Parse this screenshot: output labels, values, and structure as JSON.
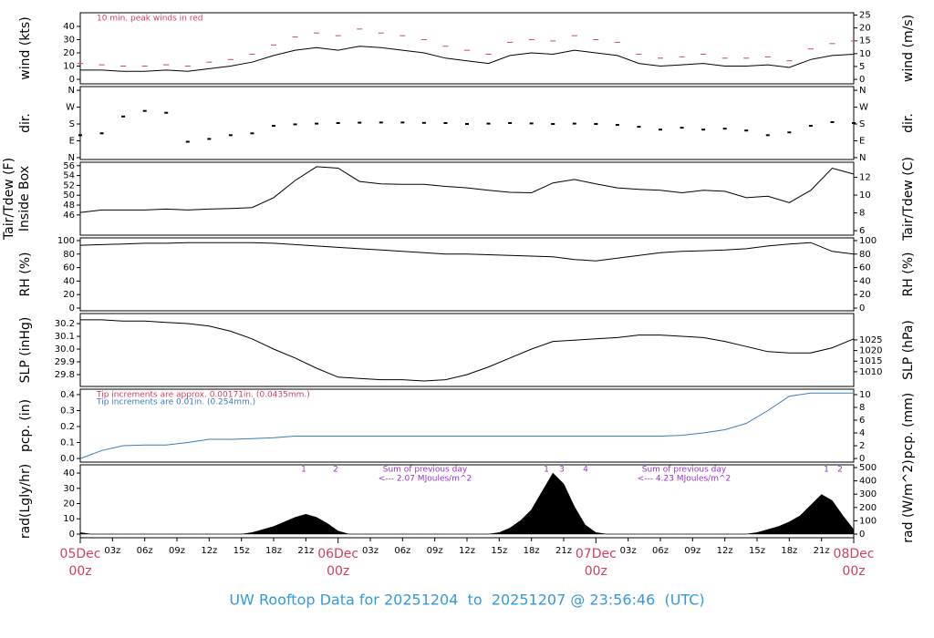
{
  "title": "UW Rooftop Data for 20251204  to  20251207 @ 23:56:46  (UTC)",
  "chart_data": [
    {
      "type": "line",
      "xlim": [
        0,
        72
      ],
      "x": [
        0,
        2,
        4,
        6,
        8,
        10,
        12,
        14,
        16,
        18,
        20,
        22,
        24,
        26,
        28,
        30,
        32,
        34,
        36,
        38,
        40,
        42,
        44,
        46,
        48,
        50,
        52,
        54,
        56,
        58,
        60,
        62,
        64,
        66,
        68,
        70,
        72
      ],
      "ylim": [
        -3.4,
        50.3
      ],
      "yticks": [
        0,
        10,
        20,
        30,
        40
      ],
      "y2lim": [
        -1.75,
        25.9
      ],
      "y2ticks": [
        0,
        5,
        10,
        15,
        20,
        25
      ],
      "ylabel": "wind (kts)",
      "y2label": "wind (m/s)",
      "annotations": [
        {
          "text": "10 min. peak winds in red",
          "color": "#d04060"
        }
      ],
      "series": [
        {
          "color": "#000000",
          "values": [
            7,
            7,
            6,
            6,
            7,
            6,
            8,
            10,
            13,
            18,
            22,
            24,
            22,
            25,
            24,
            22,
            20,
            16,
            14,
            12,
            18,
            20,
            19,
            22,
            20,
            18,
            12,
            10,
            11,
            12,
            10,
            10,
            11,
            9,
            15,
            18,
            19
          ]
        },
        {
          "color": "#d04060",
          "style": "dash",
          "values": [
            12,
            11,
            10,
            10,
            11,
            10,
            13,
            15,
            19,
            26,
            32,
            35,
            33,
            38,
            35,
            33,
            30,
            25,
            22,
            19,
            28,
            30,
            29,
            33,
            30,
            28,
            19,
            16,
            17,
            19,
            16,
            16,
            17,
            14,
            23,
            27,
            29
          ]
        }
      ]
    },
    {
      "type": "scatter",
      "xlim": [
        0,
        72
      ],
      "x": [
        0,
        2,
        4,
        6,
        8,
        10,
        12,
        14,
        16,
        18,
        20,
        22,
        24,
        26,
        28,
        30,
        32,
        34,
        36,
        38,
        40,
        42,
        44,
        46,
        48,
        50,
        52,
        54,
        56,
        58,
        60,
        62,
        64,
        66,
        68,
        70,
        72
      ],
      "ylim": [
        -10,
        380
      ],
      "yticks": [
        {
          "value": 0,
          "label": "N"
        },
        {
          "value": 90,
          "label": "E"
        },
        {
          "value": 180,
          "label": "S"
        },
        {
          "value": 270,
          "label": "W"
        },
        {
          "value": 360,
          "label": "N"
        }
      ],
      "y2lim": [
        -10,
        380
      ],
      "y2ticks": [
        {
          "value": 0,
          "label": "N"
        },
        {
          "value": 90,
          "label": "E"
        },
        {
          "value": 180,
          "label": "S"
        },
        {
          "value": 270,
          "label": "W"
        },
        {
          "value": 360,
          "label": "N"
        }
      ],
      "ylabel": "dir.",
      "y2label": "dir.",
      "color": "#000000",
      "values": [
        120,
        130,
        220,
        250,
        240,
        85,
        100,
        120,
        130,
        170,
        178,
        182,
        185,
        187,
        188,
        188,
        186,
        185,
        180,
        182,
        185,
        183,
        180,
        182,
        180,
        175,
        165,
        150,
        160,
        150,
        155,
        145,
        120,
        135,
        170,
        190,
        185
      ]
    },
    {
      "type": "line",
      "xlim": [
        0,
        72
      ],
      "x": [
        0,
        2,
        4,
        6,
        8,
        10,
        12,
        14,
        16,
        18,
        20,
        22,
        24,
        26,
        28,
        30,
        32,
        34,
        36,
        38,
        40,
        42,
        44,
        46,
        48,
        50,
        52,
        54,
        56,
        58,
        60,
        62,
        64,
        66,
        68,
        70,
        72
      ],
      "ylim": [
        41.9,
        56.7
      ],
      "yticks": [
        46,
        48,
        50,
        52,
        54,
        56
      ],
      "y2lim": [
        5.5,
        13.7
      ],
      "y2ticks": [
        6,
        8,
        10,
        12
      ],
      "ylabel": [
        "Tair/Tdew (F)",
        "Inside Box"
      ],
      "y2label": "Tair/Tdew (C)",
      "series": [
        {
          "color": "#000000",
          "values": [
            46.5,
            47,
            47,
            47,
            47.2,
            47,
            47.2,
            47.3,
            47.5,
            49.5,
            53,
            55.8,
            55.5,
            52.8,
            52.3,
            52.2,
            52.2,
            51.8,
            51.5,
            51,
            50.6,
            50.5,
            52.5,
            53.2,
            52.3,
            51.5,
            51.2,
            51,
            50.5,
            51,
            50.8,
            49.5,
            49.8,
            48.5,
            51,
            55.5,
            54.3
          ]
        }
      ]
    },
    {
      "type": "line",
      "xlim": [
        0,
        72
      ],
      "x": [
        0,
        2,
        4,
        6,
        8,
        10,
        12,
        14,
        16,
        18,
        20,
        22,
        24,
        26,
        28,
        30,
        32,
        34,
        36,
        38,
        40,
        42,
        44,
        46,
        48,
        50,
        52,
        54,
        56,
        58,
        60,
        62,
        64,
        66,
        68,
        70,
        72
      ],
      "ylim": [
        -4,
        104
      ],
      "yticks": [
        0,
        20,
        40,
        60,
        80,
        100
      ],
      "y2lim": [
        -4,
        104
      ],
      "y2ticks": [
        0,
        20,
        40,
        60,
        80,
        100
      ],
      "ylabel": "RH (%)",
      "y2label": "RH (%)",
      "series": [
        {
          "color": "#000000",
          "values": [
            93,
            94,
            95,
            96,
            96,
            97,
            97,
            97,
            97,
            96,
            94,
            92,
            90,
            88,
            86,
            84,
            82,
            80,
            80,
            79,
            78,
            77,
            76,
            72,
            70,
            74,
            78,
            82,
            84,
            85,
            86,
            88,
            92,
            95,
            97,
            84,
            80
          ]
        }
      ]
    },
    {
      "type": "line",
      "xlim": [
        0,
        72
      ],
      "x": [
        0,
        2,
        4,
        6,
        8,
        10,
        12,
        14,
        16,
        18,
        20,
        22,
        24,
        26,
        28,
        30,
        32,
        34,
        36,
        38,
        40,
        42,
        44,
        46,
        48,
        50,
        52,
        54,
        56,
        58,
        60,
        62,
        64,
        66,
        68,
        70,
        72
      ],
      "ylim": [
        29.707,
        30.279
      ],
      "yticks": [
        29.8,
        29.9,
        {
          "value": 30,
          "label": "30.0"
        },
        30.1,
        30.2
      ],
      "y2lim": [
        1003.1,
        1037.4
      ],
      "y2ticks": [
        1010,
        1015,
        1020,
        1025
      ],
      "ylabel": "SLP (inHg)",
      "y2label": "SLP (hPa)",
      "series": [
        {
          "color": "#000000",
          "values": [
            30.23,
            30.23,
            30.22,
            30.22,
            30.21,
            30.2,
            30.18,
            30.14,
            30.08,
            30.0,
            29.93,
            29.85,
            29.78,
            29.77,
            29.76,
            29.76,
            29.75,
            29.76,
            29.8,
            29.86,
            29.93,
            30.0,
            30.06,
            30.07,
            30.08,
            30.09,
            30.11,
            30.11,
            30.1,
            30.09,
            30.06,
            30.02,
            29.98,
            29.97,
            29.97,
            30.01,
            30.08
          ]
        }
      ]
    },
    {
      "type": "line",
      "xlim": [
        0,
        72
      ],
      "x": [
        0,
        2,
        4,
        6,
        8,
        10,
        12,
        14,
        16,
        18,
        20,
        22,
        24,
        26,
        28,
        30,
        32,
        34,
        36,
        38,
        40,
        42,
        44,
        46,
        48,
        50,
        52,
        54,
        56,
        58,
        60,
        62,
        64,
        66,
        68,
        70,
        72
      ],
      "ylim": [
        -0.0225,
        0.434
      ],
      "yticks": [
        {
          "value": 0,
          "label": "0.0"
        },
        0.1,
        0.2,
        0.3,
        0.4
      ],
      "y2lim": [
        -0.56,
        10.85
      ],
      "y2ticks": [
        0,
        2,
        4,
        6,
        8,
        10
      ],
      "ylabel": "pcp. (in)",
      "y2label": "pcp. (mm)",
      "annotations": [
        {
          "text": "Tip increments are approx. 0.00171in. (0.0435mm.)",
          "color": "#d04060"
        },
        {
          "text": "Tip increments are 0.01in. (0.254mm.)",
          "color": "#3a7ac0"
        }
      ],
      "series": [
        {
          "color": "#3a7ac0",
          "values": [
            0,
            0.05,
            0.08,
            0.085,
            0.085,
            0.1,
            0.12,
            0.12,
            0.125,
            0.13,
            0.14,
            0.14,
            0.14,
            0.14,
            0.14,
            0.14,
            0.14,
            0.14,
            0.14,
            0.14,
            0.14,
            0.14,
            0.14,
            0.14,
            0.14,
            0.14,
            0.14,
            0.14,
            0.145,
            0.16,
            0.18,
            0.22,
            0.3,
            0.39,
            0.41,
            0.41,
            0.41
          ]
        }
      ]
    },
    {
      "type": "area",
      "xlim": [
        0,
        72
      ],
      "x": [
        0,
        1,
        2,
        3,
        4,
        5,
        6,
        7,
        8,
        9,
        10,
        11,
        12,
        13,
        14,
        15,
        16,
        17,
        18,
        19,
        20,
        21,
        22,
        23,
        24,
        25,
        26,
        27,
        28,
        29,
        30,
        31,
        32,
        33,
        34,
        35,
        36,
        37,
        38,
        39,
        40,
        41,
        42,
        43,
        44,
        45,
        46,
        47,
        48,
        49,
        50,
        51,
        52,
        53,
        54,
        55,
        56,
        57,
        58,
        59,
        60,
        61,
        62,
        63,
        64,
        65,
        66,
        67,
        68,
        69,
        70,
        71,
        72
      ],
      "ylim": [
        -2.4,
        45.4
      ],
      "yticks": [
        0,
        10,
        20,
        30,
        40
      ],
      "y2lim": [
        -27.4,
        520.5
      ],
      "y2ticks": [
        0,
        100,
        200,
        300,
        400,
        500
      ],
      "ylabel": "rad(Lgly/hr)",
      "y2label": "rad (W/m^2)",
      "color": "#000000",
      "values": [
        1,
        0,
        0,
        0,
        0,
        0,
        0,
        0,
        0,
        0,
        0,
        0,
        0,
        0,
        0,
        0,
        1,
        3,
        5,
        8,
        11,
        13,
        11,
        7,
        2,
        0,
        0,
        0,
        0,
        0,
        0,
        0,
        0,
        0,
        0,
        0,
        0,
        0,
        0,
        1,
        4,
        9,
        16,
        28,
        40,
        33,
        18,
        6,
        1,
        0,
        0,
        0,
        0,
        0,
        0,
        0,
        0,
        0,
        0,
        0,
        0,
        0,
        0,
        1,
        3,
        5,
        8,
        12,
        19,
        26,
        22,
        12,
        3
      ],
      "markers": [
        "1",
        "2",
        "1",
        "3",
        "4",
        "1",
        "2"
      ],
      "notes": [
        [
          "Sum of previous day",
          "<--- 2.07 MJoules/m^2"
        ],
        [
          "Sum of previous day",
          "<--- 4.23 MJoules/m^2"
        ]
      ],
      "xticks": [
        {
          "value": 3,
          "label": "03z"
        },
        {
          "value": 6,
          "label": "06z"
        },
        {
          "value": 9,
          "label": "09z"
        },
        {
          "value": 12,
          "label": "12z"
        },
        {
          "value": 15,
          "label": "15z"
        },
        {
          "value": 18,
          "label": "18z"
        },
        {
          "value": 21,
          "label": "21z"
        },
        {
          "value": 27,
          "label": "03z"
        },
        {
          "value": 30,
          "label": "06z"
        },
        {
          "value": 33,
          "label": "09z"
        },
        {
          "value": 36,
          "label": "12z"
        },
        {
          "value": 39,
          "label": "15z"
        },
        {
          "value": 42,
          "label": "18z"
        },
        {
          "value": 45,
          "label": "21z"
        },
        {
          "value": 51,
          "label": "03z"
        },
        {
          "value": 54,
          "label": "06z"
        },
        {
          "value": 57,
          "label": "09z"
        },
        {
          "value": 60,
          "label": "12z"
        },
        {
          "value": 63,
          "label": "15z"
        },
        {
          "value": 66,
          "label": "18z"
        },
        {
          "value": 69,
          "label": "21z"
        }
      ],
      "day_ticks": [
        {
          "value": 0,
          "label": "05Dec",
          "sublabel": "00z"
        },
        {
          "value": 24,
          "label": "06Dec",
          "sublabel": "00z"
        },
        {
          "value": 48,
          "label": "07Dec",
          "sublabel": "00z"
        },
        {
          "value": 72,
          "label": "08Dec",
          "sublabel": "00z"
        }
      ]
    }
  ]
}
